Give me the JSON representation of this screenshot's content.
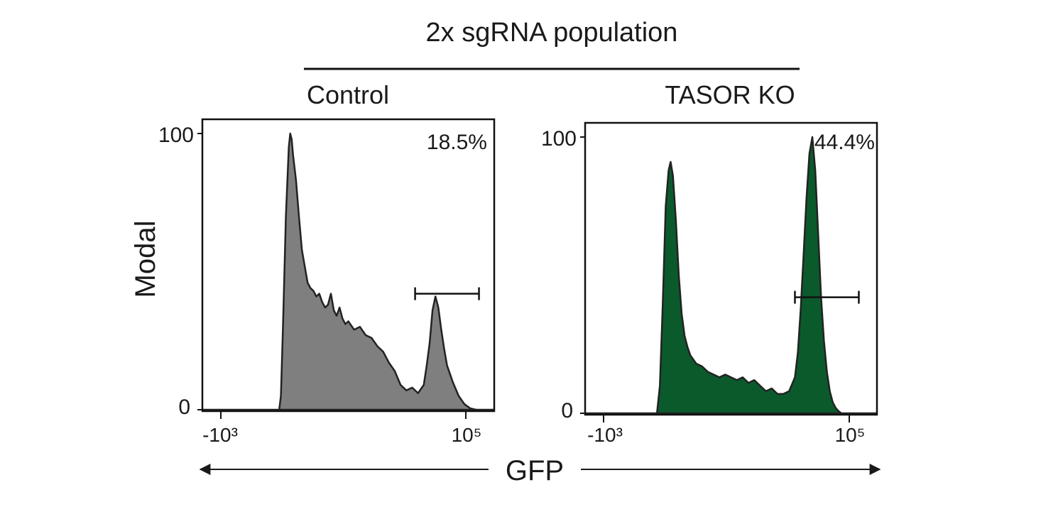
{
  "figure": {
    "title": "2x sgRNA population",
    "ylabel": "Modal",
    "xlabel": "GFP"
  },
  "chart_data": [
    {
      "type": "area",
      "panel_label": "Control",
      "x_ticks": [
        "-10³",
        "10⁵"
      ],
      "y_ticks": [
        "0",
        "100"
      ],
      "ylim": [
        0,
        100
      ],
      "gate_percent": "18.5%",
      "fill_color": "#7f7f7f",
      "gate_range_fraction": [
        0.73,
        0.95
      ],
      "gate_height": 42,
      "histogram": {
        "x_fraction": [
          0.0,
          0.262,
          0.268,
          0.275,
          0.285,
          0.295,
          0.3,
          0.305,
          0.31,
          0.32,
          0.33,
          0.34,
          0.35,
          0.36,
          0.37,
          0.38,
          0.39,
          0.4,
          0.41,
          0.42,
          0.43,
          0.44,
          0.45,
          0.46,
          0.47,
          0.48,
          0.49,
          0.5,
          0.52,
          0.54,
          0.56,
          0.58,
          0.6,
          0.62,
          0.64,
          0.66,
          0.68,
          0.7,
          0.72,
          0.74,
          0.76,
          0.77,
          0.78,
          0.79,
          0.8,
          0.81,
          0.82,
          0.83,
          0.84,
          0.86,
          0.88,
          0.9,
          0.92,
          0.94,
          1.0
        ],
        "y": [
          0,
          0,
          5,
          30,
          70,
          95,
          100,
          98,
          92,
          83,
          70,
          58,
          52,
          46,
          44,
          43,
          41,
          42,
          39,
          37,
          38,
          42,
          36,
          34,
          37,
          33,
          31,
          32,
          29,
          30,
          27,
          26,
          23,
          21,
          17,
          14,
          9,
          7,
          8,
          6,
          9,
          16,
          24,
          36,
          41,
          37,
          29,
          22,
          16,
          10,
          5,
          2,
          0.5,
          0,
          0
        ]
      }
    },
    {
      "type": "area",
      "panel_label": "TASOR KO",
      "x_ticks": [
        "-10³",
        "10⁵"
      ],
      "y_ticks": [
        "0",
        "100"
      ],
      "ylim": [
        0,
        100
      ],
      "gate_percent": "44.4%",
      "fill_color": "#0b5a2c",
      "gate_range_fraction": [
        0.72,
        0.94
      ],
      "gate_height": 42,
      "histogram": {
        "x_fraction": [
          0.0,
          0.245,
          0.255,
          0.265,
          0.275,
          0.285,
          0.292,
          0.3,
          0.31,
          0.32,
          0.33,
          0.34,
          0.35,
          0.36,
          0.38,
          0.4,
          0.42,
          0.44,
          0.46,
          0.48,
          0.5,
          0.52,
          0.54,
          0.56,
          0.58,
          0.6,
          0.62,
          0.64,
          0.66,
          0.68,
          0.7,
          0.72,
          0.73,
          0.74,
          0.75,
          0.76,
          0.77,
          0.78,
          0.79,
          0.8,
          0.81,
          0.82,
          0.83,
          0.84,
          0.85,
          0.86,
          0.87,
          0.88,
          0.9,
          1.0
        ],
        "y": [
          0,
          0,
          10,
          40,
          75,
          88,
          91,
          86,
          70,
          50,
          36,
          28,
          24,
          21,
          18,
          17,
          15,
          14,
          13,
          14,
          13,
          12,
          13,
          11,
          12,
          10,
          8,
          9,
          7,
          7,
          8,
          13,
          22,
          38,
          58,
          78,
          94,
          100,
          88,
          65,
          42,
          26,
          15,
          8,
          4,
          2,
          0.8,
          0,
          0,
          0
        ]
      }
    }
  ]
}
